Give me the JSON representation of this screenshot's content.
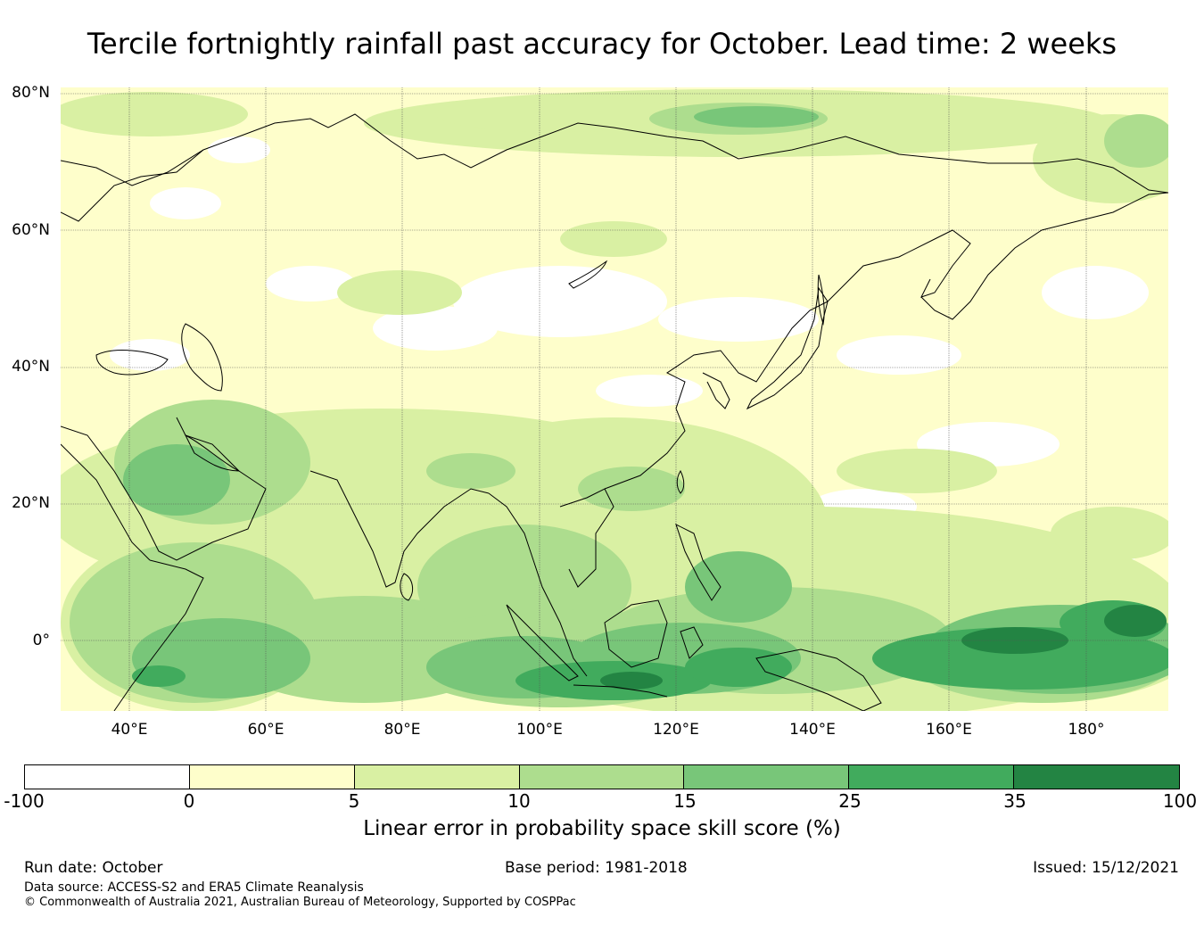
{
  "title": "Tercile fortnightly rainfall past accuracy for October. Lead time: 2 weeks",
  "map": {
    "lat_labels": [
      "80°N",
      "60°N",
      "40°N",
      "20°N",
      "0°"
    ],
    "lon_labels": [
      "40°E",
      "60°E",
      "80°E",
      "100°E",
      "120°E",
      "140°E",
      "160°E",
      "180°"
    ],
    "lat_extent": [
      -10,
      81
    ],
    "lon_extent": [
      30,
      192
    ]
  },
  "colorbar": {
    "ticks": [
      "-100",
      "0",
      "5",
      "10",
      "15",
      "25",
      "35",
      "100"
    ],
    "colors": [
      "#ffffff",
      "#fefecb",
      "#d9f0a3",
      "#addd8e",
      "#78c679",
      "#41ab5d",
      "#238443"
    ],
    "label": "Linear error in probability space skill score (%)"
  },
  "footer": {
    "run_date": "Run date: October",
    "base_period": "Base period: 1981-2018",
    "issued": "Issued: 15/12/2021",
    "data_source": "Data source: ACCESS-S2 and ERA5 Climate Reanalysis",
    "copyright": "© Commonwealth of Australia 2021, Australian Bureau of Meteorology, Supported by COSPPac"
  }
}
